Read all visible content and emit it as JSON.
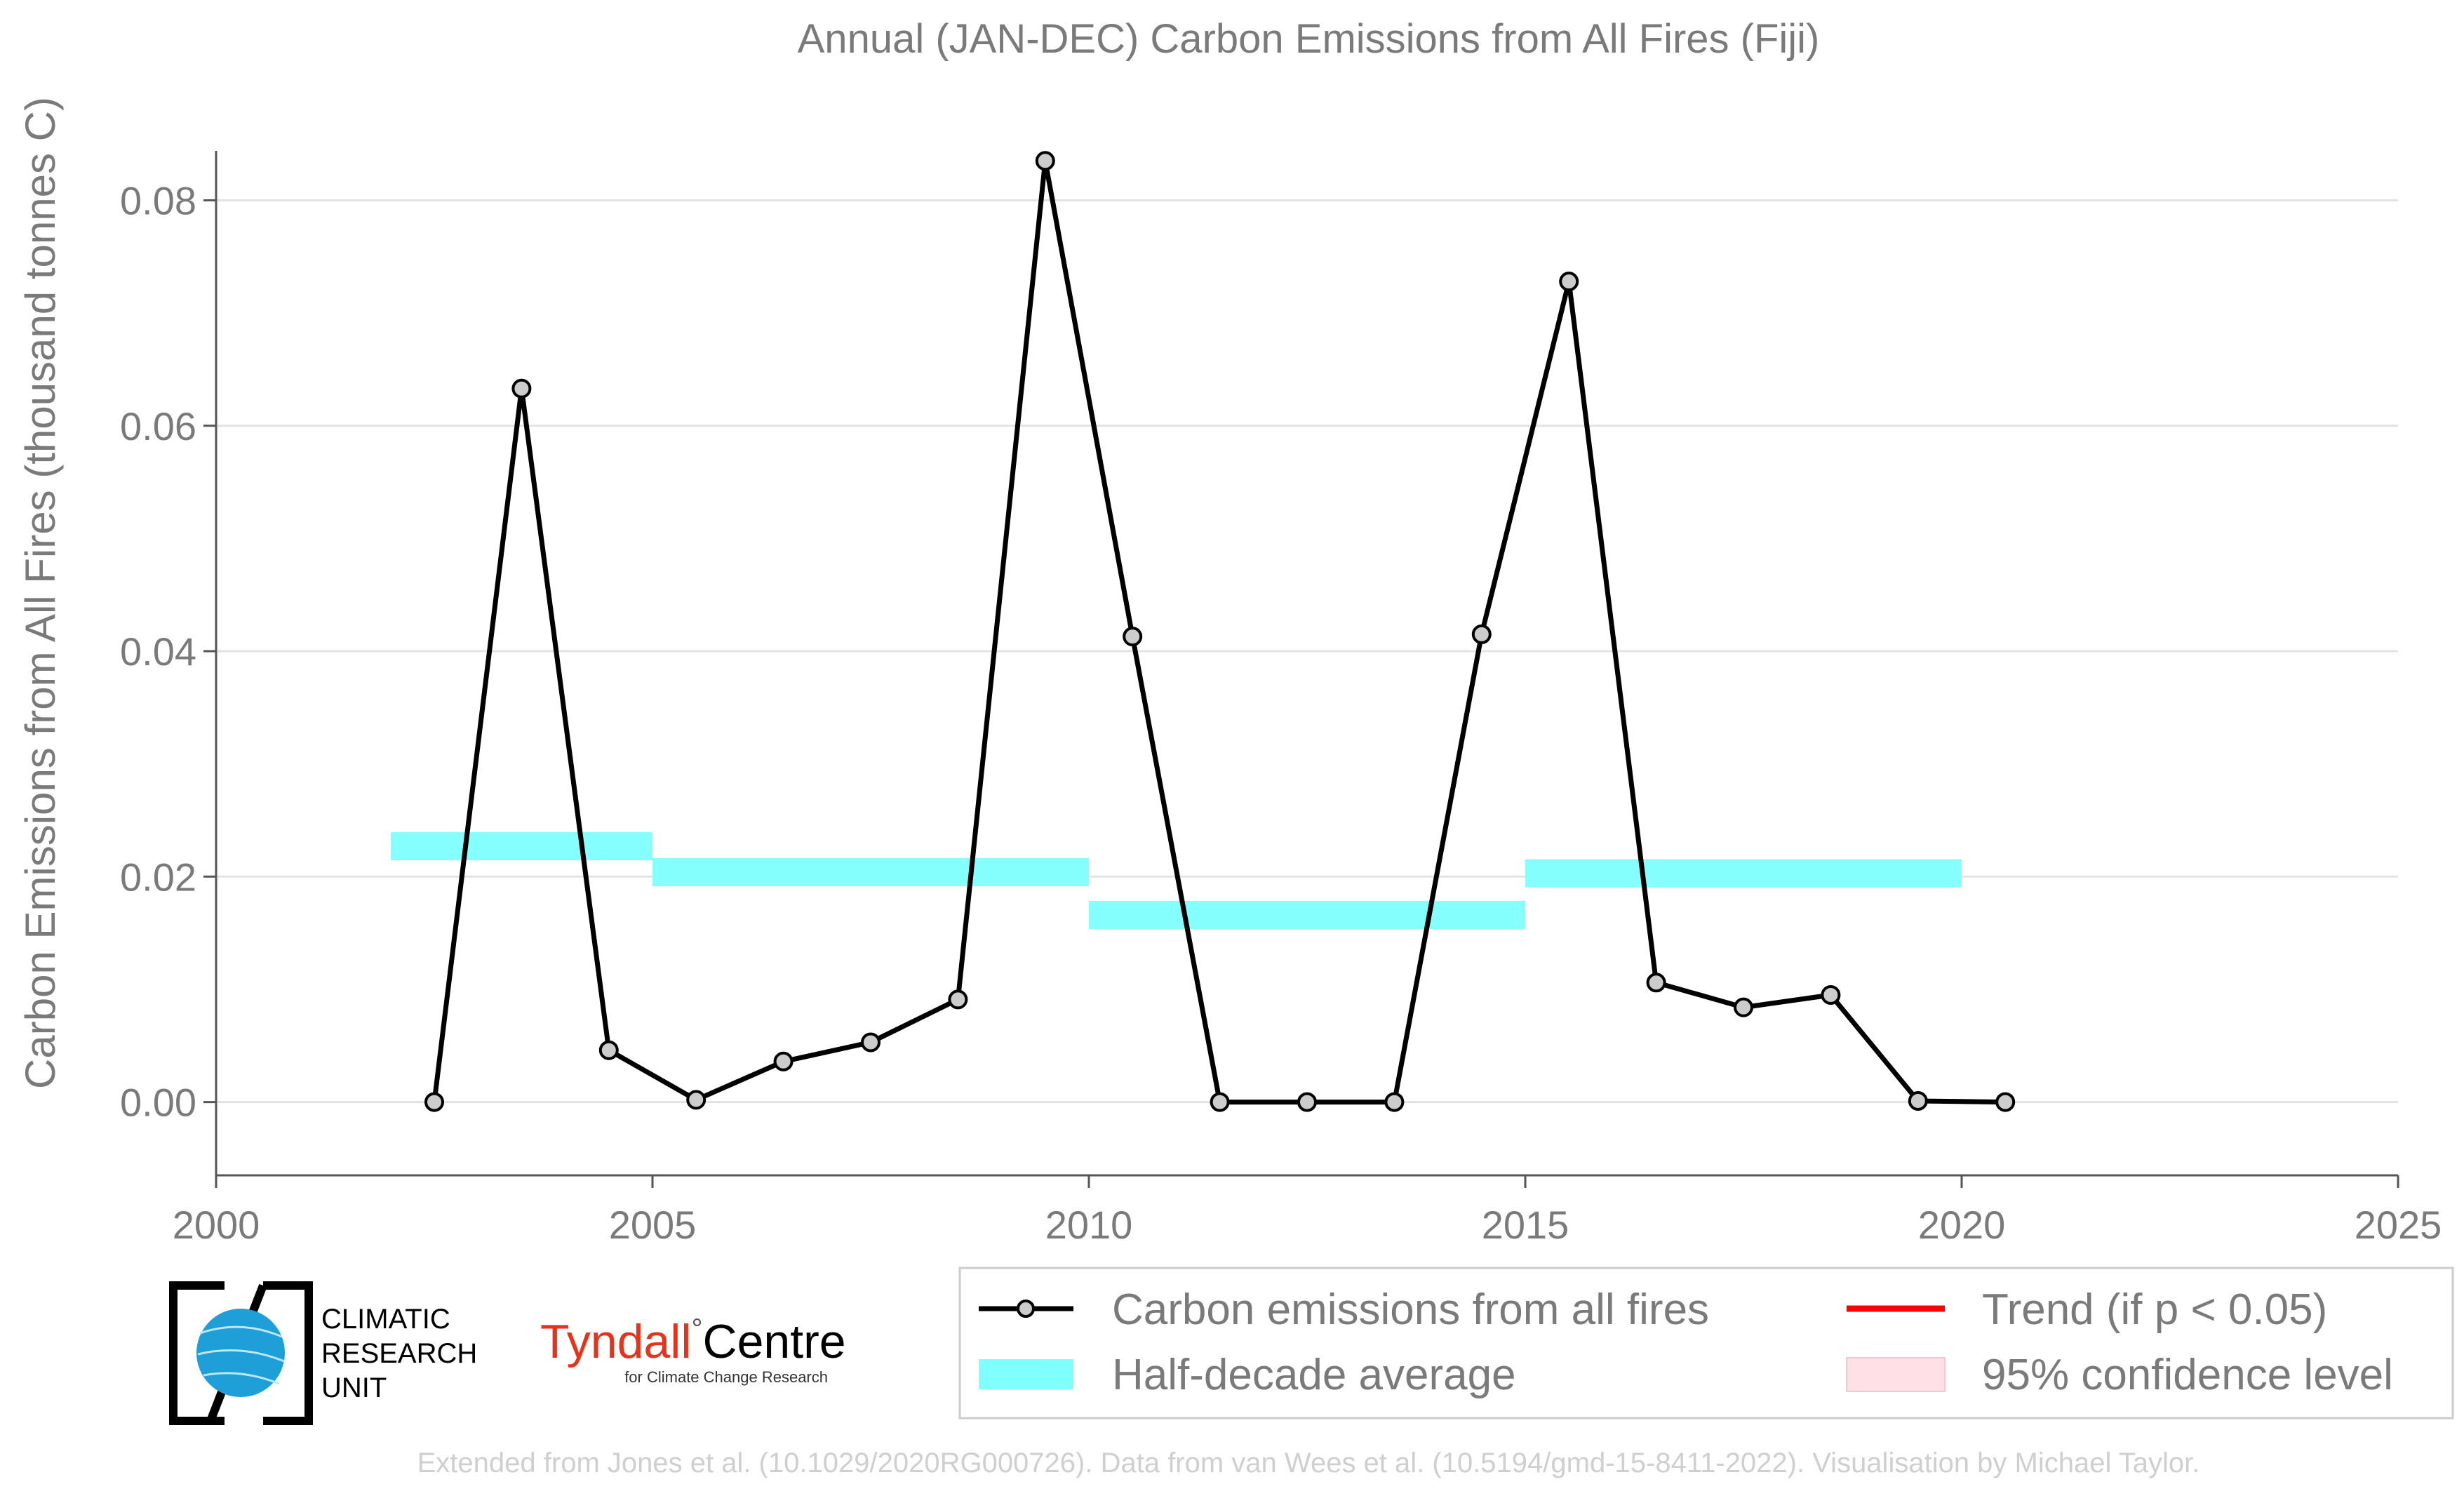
{
  "chart_data": {
    "type": "line",
    "title": "Annual (JAN-DEC) Carbon Emissions from All Fires (Fiji)",
    "ylabel": "Carbon Emissions from All Fires (thousand tonnes C)",
    "xlabel": "",
    "xlim": [
      2000,
      2025
    ],
    "ylim": [
      -0.0065,
      0.0875
    ],
    "x_ticks": [
      2000,
      2005,
      2010,
      2015,
      2020,
      2025
    ],
    "y_ticks": [
      0.0,
      0.02,
      0.04,
      0.06,
      0.08
    ],
    "x_tick_labels": [
      "2000",
      "2005",
      "2010",
      "2015",
      "2020",
      "2025"
    ],
    "y_tick_labels": [
      "0.00",
      "0.02",
      "0.04",
      "0.06",
      "0.08"
    ],
    "grid": "horizontal",
    "legend_position": "bottom-right",
    "series": [
      {
        "name": "Carbon emissions from all fires",
        "color": "#000000",
        "x": [
          2002.5,
          2003.5,
          2004.5,
          2005.5,
          2006.5,
          2007.5,
          2008.5,
          2009.5,
          2010.5,
          2011.5,
          2012.5,
          2013.5,
          2014.5,
          2015.5,
          2016.5,
          2017.5,
          2018.5,
          2019.5,
          2020.5
        ],
        "y": [
          0.0,
          0.0633,
          0.0046,
          0.0002,
          0.0036,
          0.0053,
          0.0091,
          0.0835,
          0.0413,
          0.0,
          0.0,
          0.0,
          0.0415,
          0.0728,
          0.0106,
          0.0084,
          0.0095,
          0.0001,
          0.0
        ]
      },
      {
        "name": "Half-decade average",
        "color": "#80ffff",
        "segments": [
          {
            "x_start": 2002,
            "x_end": 2005,
            "y": 0.0227
          },
          {
            "x_start": 2005,
            "x_end": 2010,
            "y": 0.0204
          },
          {
            "x_start": 2010,
            "x_end": 2015,
            "y": 0.0166
          },
          {
            "x_start": 2015,
            "x_end": 2020,
            "y": 0.0203
          }
        ]
      }
    ],
    "legend": [
      {
        "label": "Carbon emissions from all fires",
        "symbol": "line-marker",
        "color": "#000000"
      },
      {
        "label": "Trend (if p < 0.05)",
        "symbol": "line",
        "color": "#ff0000"
      },
      {
        "label": "Half-decade average",
        "symbol": "patch",
        "color": "#80ffff"
      },
      {
        "label": "95% confidence level",
        "symbol": "patch",
        "color": "#ffe0e6"
      }
    ]
  },
  "logos": {
    "cru": {
      "line1": "CLIMATIC",
      "line2": "RESEARCH",
      "line3": "UNIT"
    },
    "tyndall": {
      "name_part1": "Tyndall",
      "degree": "°",
      "name_part2": "Centre",
      "subtitle": "for Climate Change Research",
      "color": "#e8331c"
    }
  },
  "credit": "Extended from Jones et al. (10.1029/2020RG000726). Data from van Wees et al. (10.5194/gmd-15-8411-2022). Visualisation by Michael Taylor."
}
